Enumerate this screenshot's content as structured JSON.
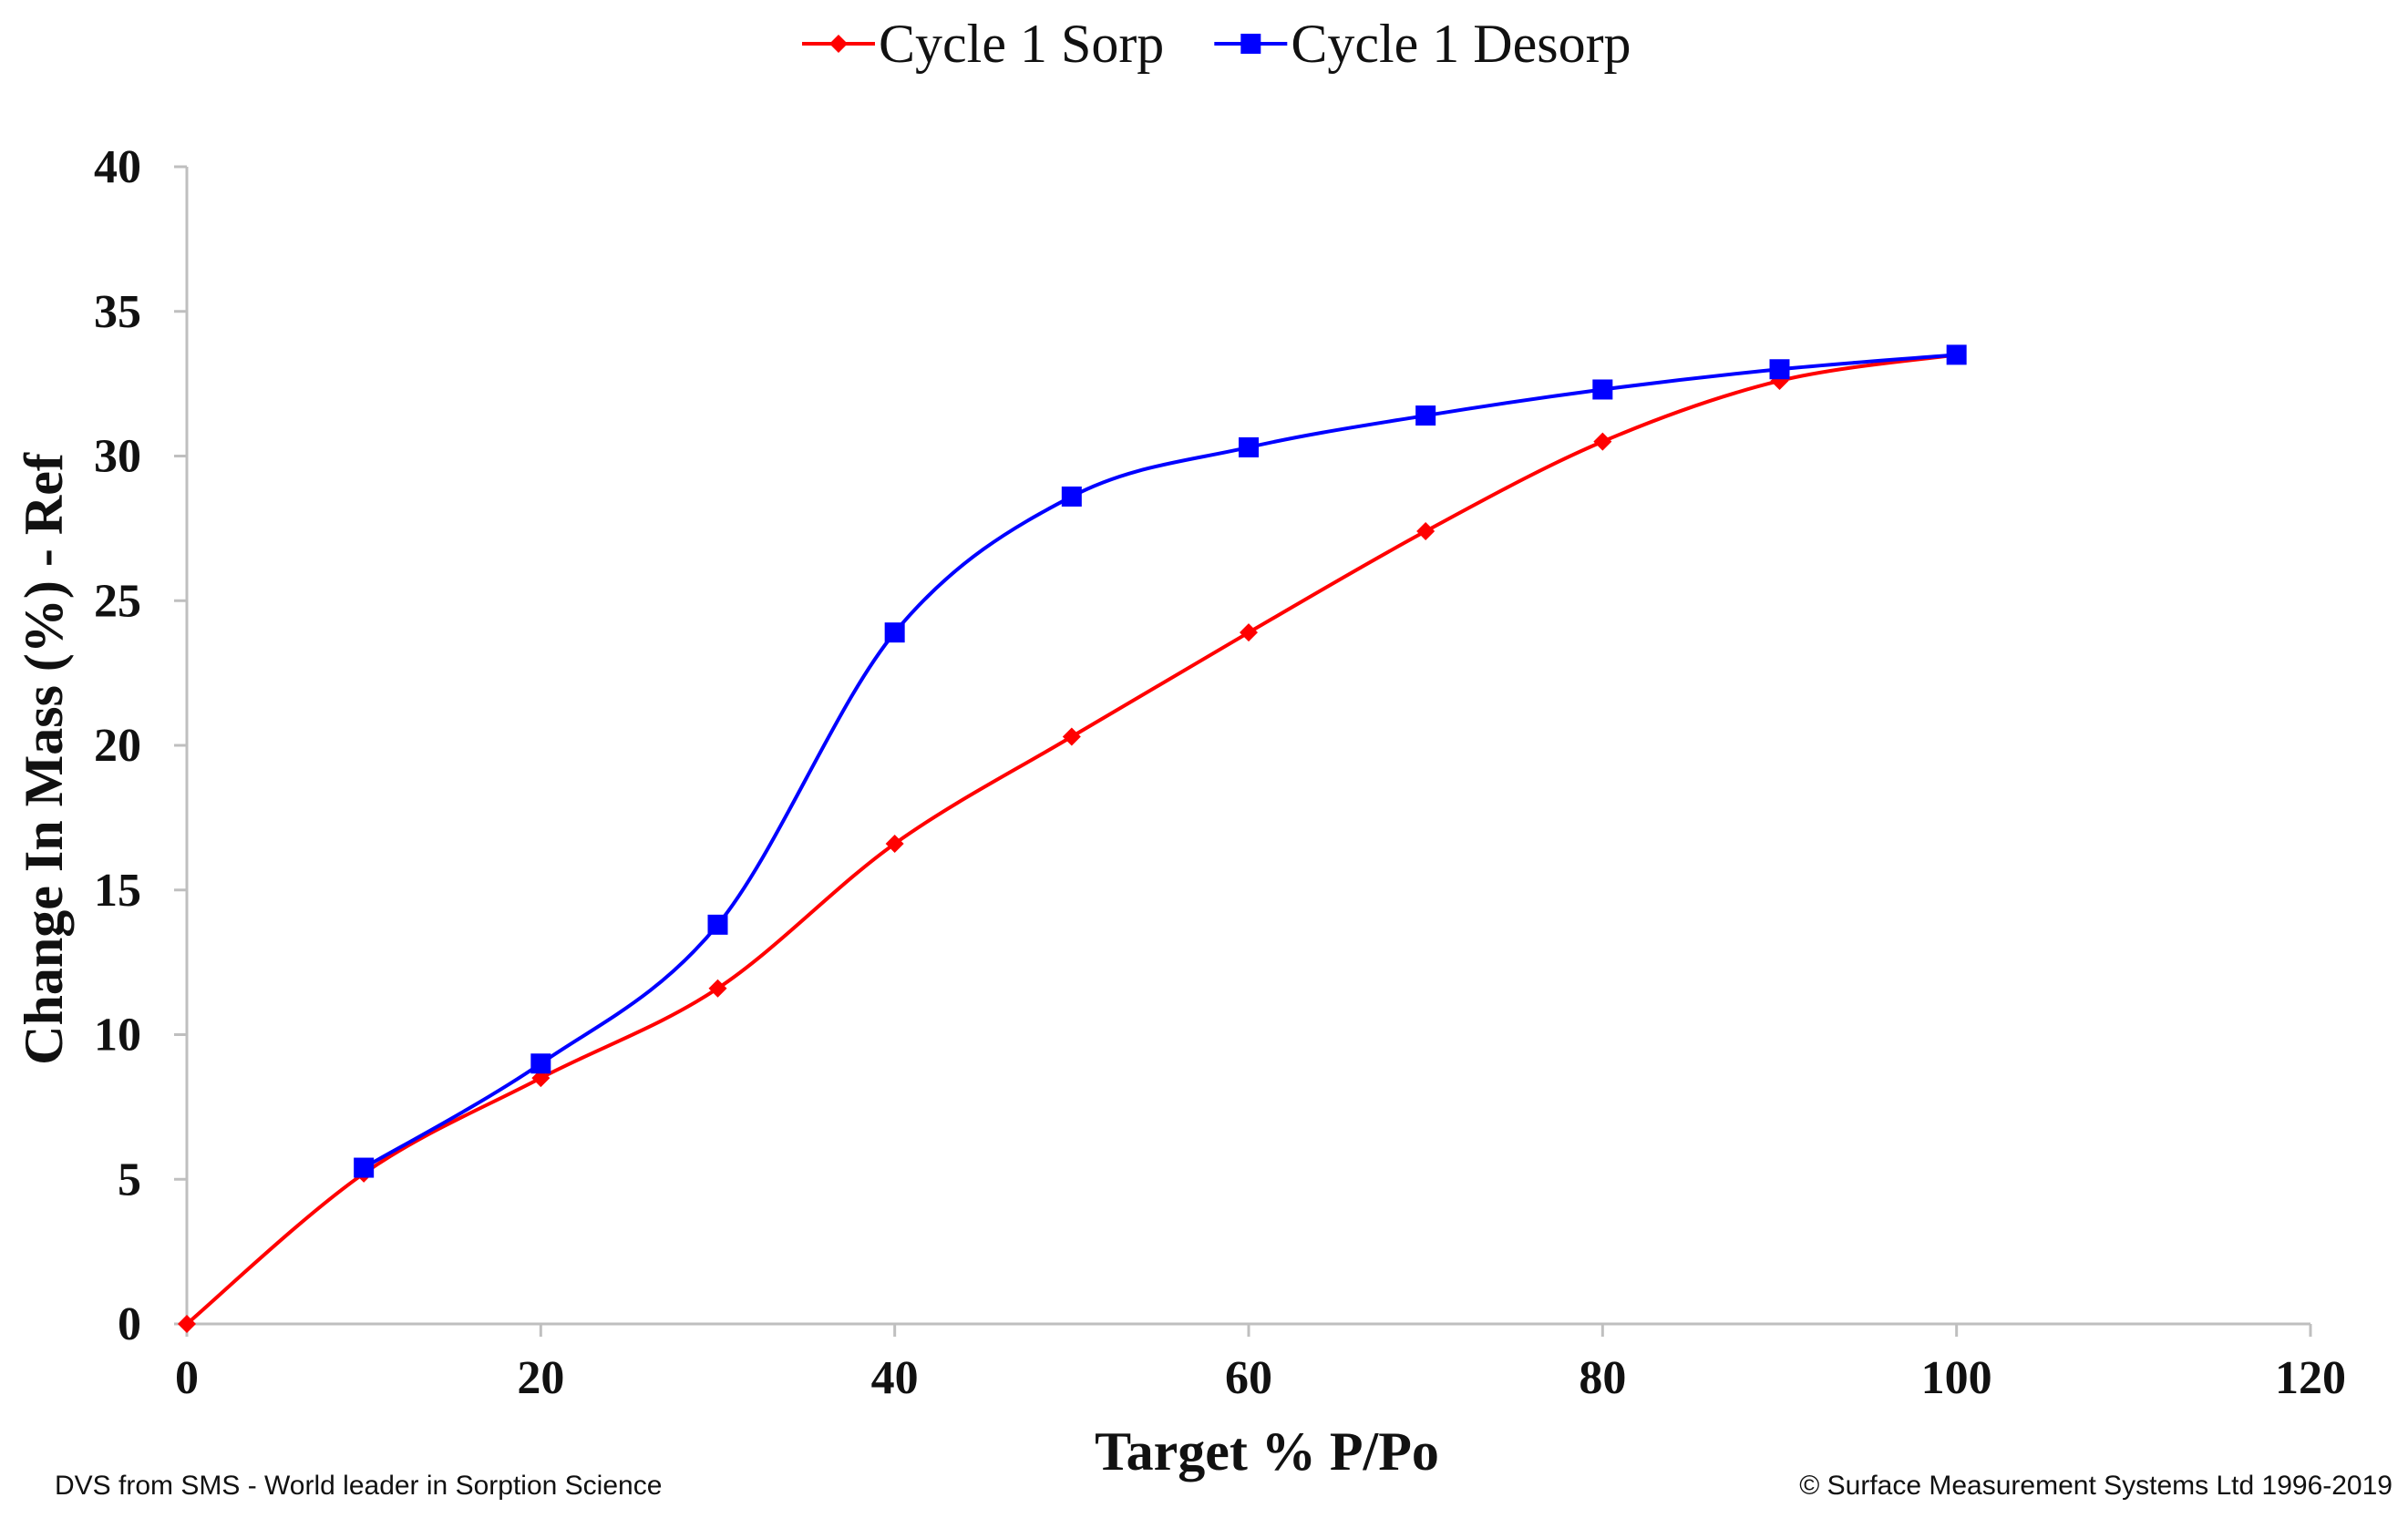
{
  "chart_data": {
    "type": "line",
    "title": "",
    "xlabel": "Target % P/Po",
    "ylabel": "Change In Mass (%) - Ref",
    "xlim": [
      0,
      120
    ],
    "ylim": [
      0,
      40
    ],
    "x_ticks": [
      0,
      20,
      40,
      60,
      80,
      100,
      120
    ],
    "y_ticks": [
      0,
      5,
      10,
      15,
      20,
      25,
      30,
      35,
      40
    ],
    "grid": false,
    "legend_position": "top-center",
    "series": [
      {
        "name": "Cycle 1 Sorp",
        "color": "#ff0000",
        "marker": "diamond",
        "x": [
          0,
          10,
          20,
          30,
          40,
          50,
          60,
          70,
          80,
          90,
          100
        ],
        "y": [
          0,
          5.2,
          8.5,
          11.6,
          16.6,
          20.3,
          23.9,
          27.4,
          30.5,
          32.6,
          33.5
        ]
      },
      {
        "name": "Cycle 1 Desorp",
        "color": "#0000ff",
        "marker": "square",
        "x": [
          10,
          20,
          30,
          40,
          50,
          60,
          70,
          80,
          90,
          100
        ],
        "y": [
          5.4,
          9.0,
          13.8,
          23.9,
          28.6,
          30.3,
          31.4,
          32.3,
          33.0,
          33.5
        ]
      }
    ],
    "footer_left": "DVS from SMS - World leader in Sorption Science",
    "footer_right": "© Surface Measurement Systems Ltd 1996-2019"
  }
}
